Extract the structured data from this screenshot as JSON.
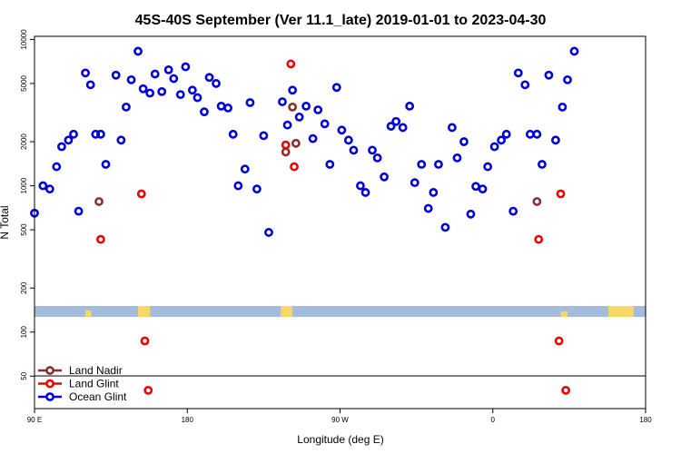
{
  "chart_data": {
    "type": "scatter",
    "title": "45S-40S September (Ver 11.1_late)   2019-01-01 to 2023-04-30",
    "xlabel": "Longitude (deg E)",
    "ylabel": "N Total",
    "y_scale": "log",
    "x_range_deg_east": [
      90,
      450
    ],
    "y_range": [
      30,
      10500
    ],
    "x_ticks": [
      {
        "value": 90,
        "label": "90 E"
      },
      {
        "value": 180,
        "label": "180"
      },
      {
        "value": 270,
        "label": "90 W"
      },
      {
        "value": 360,
        "label": "0"
      },
      {
        "value": 450,
        "label": "180"
      },
      {
        "value": 540,
        "label": "90 E"
      },
      {
        "value": 630,
        "label": "180"
      }
    ],
    "y_ticks": [
      {
        "value": 50,
        "label": "50"
      },
      {
        "value": 100,
        "label": "100"
      },
      {
        "value": 200,
        "label": "200"
      },
      {
        "value": 500,
        "label": "500"
      },
      {
        "value": 1000,
        "label": "1000"
      },
      {
        "value": 2000,
        "label": "2000"
      },
      {
        "value": 5000,
        "label": "5000"
      },
      {
        "value": 10000,
        "label": "10000"
      }
    ],
    "colors": {
      "land_nadir": "#8b2e2e",
      "land_glint": "#ee0000",
      "ocean_glint": "#0000dd",
      "map_ocean": "#a4bcdc",
      "map_land": "#f5d76a"
    },
    "legend": {
      "placement": "bottom-left",
      "entries": [
        {
          "label": "Land Nadir",
          "color": "#8b2e2e"
        },
        {
          "label": "Land Glint",
          "color": "#ee0000"
        },
        {
          "label": "Ocean Glint",
          "color": "#0000dd"
        }
      ]
    },
    "series": [
      {
        "name": "Ocean Glint",
        "color": "#0000dd",
        "points": [
          [
            90,
            650
          ],
          [
            95,
            1000
          ],
          [
            99,
            950
          ],
          [
            103,
            1350
          ],
          [
            106,
            1850
          ],
          [
            110,
            2050
          ],
          [
            113,
            2250
          ],
          [
            116,
            670
          ],
          [
            120,
            5900
          ],
          [
            123,
            4900
          ],
          [
            126,
            2250
          ],
          [
            129,
            2250
          ],
          [
            132,
            1400
          ],
          [
            138,
            5700
          ],
          [
            141,
            2050
          ],
          [
            144,
            3450
          ],
          [
            147,
            5300
          ],
          [
            151,
            8300
          ],
          [
            154,
            4600
          ],
          [
            158,
            4300
          ],
          [
            161,
            5800
          ],
          [
            165,
            4400
          ],
          [
            169,
            6200
          ],
          [
            172,
            5400
          ],
          [
            176,
            4200
          ],
          [
            179,
            6500
          ],
          [
            183,
            4500
          ],
          [
            186,
            4000
          ],
          [
            190,
            3200
          ],
          [
            193,
            5500
          ],
          [
            197,
            5000
          ],
          [
            200,
            3500
          ],
          [
            204,
            3400
          ],
          [
            207,
            2250
          ],
          [
            210,
            1000
          ],
          [
            214,
            1300
          ],
          [
            217,
            3700
          ],
          [
            221,
            950
          ],
          [
            225,
            2200
          ],
          [
            228,
            480
          ],
          [
            236,
            3750
          ],
          [
            239,
            2600
          ],
          [
            242,
            4500
          ],
          [
            246,
            2950
          ],
          [
            250,
            3500
          ],
          [
            254,
            2100
          ],
          [
            257,
            3300
          ],
          [
            261,
            2650
          ],
          [
            264,
            1400
          ],
          [
            268,
            4700
          ],
          [
            271,
            2400
          ],
          [
            275,
            2050
          ],
          [
            278,
            1750
          ],
          [
            282,
            1000
          ],
          [
            285,
            900
          ],
          [
            289,
            1750
          ],
          [
            292,
            1550
          ],
          [
            296,
            1150
          ],
          [
            300,
            2550
          ],
          [
            303,
            2750
          ],
          [
            307,
            2500
          ],
          [
            311,
            3500
          ],
          [
            314,
            1050
          ],
          [
            318,
            1400
          ],
          [
            322,
            700
          ],
          [
            325,
            900
          ],
          [
            328,
            1400
          ],
          [
            332,
            520
          ],
          [
            336,
            2500
          ],
          [
            339,
            1550
          ],
          [
            343,
            2000
          ],
          [
            347,
            640
          ],
          [
            350,
            990
          ],
          [
            354,
            950
          ],
          [
            357,
            1350
          ],
          [
            361,
            1850
          ],
          [
            365,
            2050
          ],
          [
            368,
            2250
          ],
          [
            372,
            670
          ],
          [
            375,
            5900
          ],
          [
            379,
            4900
          ],
          [
            382,
            2250
          ],
          [
            386,
            2250
          ],
          [
            389,
            1400
          ],
          [
            393,
            5700
          ],
          [
            397,
            2050
          ],
          [
            401,
            3450
          ],
          [
            404,
            5300
          ],
          [
            408,
            8300
          ]
        ]
      },
      {
        "name": "Land Glint",
        "color": "#ee0000",
        "points": [
          [
            129,
            430
          ],
          [
            153,
            880
          ],
          [
            241,
            6800
          ],
          [
            238,
            1900
          ],
          [
            243,
            1350
          ],
          [
            155,
            87
          ],
          [
            157,
            40
          ],
          [
            387,
            430
          ],
          [
            400,
            880
          ],
          [
            399,
            87
          ],
          [
            403,
            40
          ]
        ]
      },
      {
        "name": "Land Nadir",
        "color": "#8b2e2e",
        "points": [
          [
            128,
            780
          ],
          [
            238,
            1700
          ],
          [
            242,
            3450
          ],
          [
            244,
            1950
          ],
          [
            386,
            780
          ]
        ]
      }
    ]
  }
}
